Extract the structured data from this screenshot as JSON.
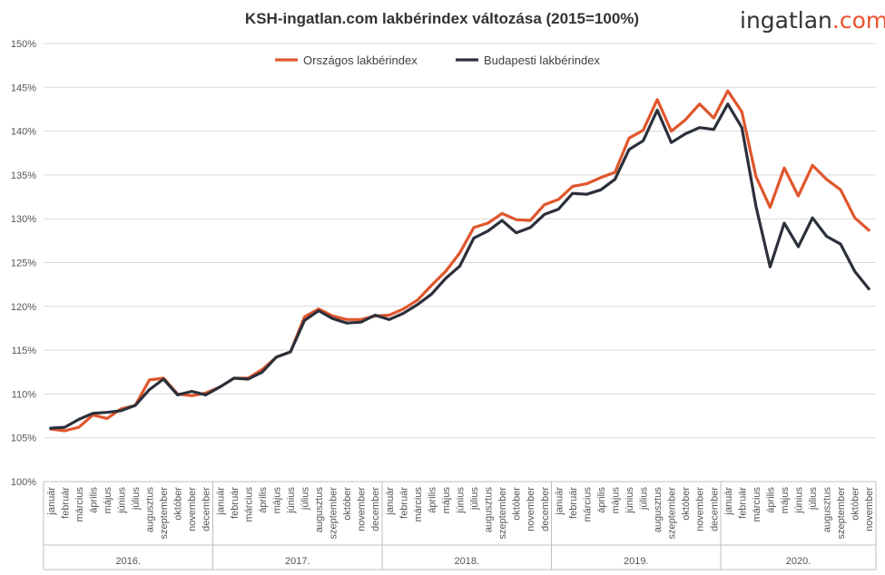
{
  "chart_data": {
    "type": "line",
    "title": "KSH-ingatlan.com lakbérindex változása (2015=100%)",
    "logo": {
      "main": "ingatlan",
      "accent": ".com"
    },
    "ylim": [
      100,
      150
    ],
    "yticks": [
      "100%",
      "105%",
      "110%",
      "115%",
      "120%",
      "125%",
      "130%",
      "135%",
      "140%",
      "145%",
      "150%"
    ],
    "grid": "horizontal",
    "legend_position": "top-center",
    "months": [
      "január",
      "február",
      "március",
      "április",
      "május",
      "június",
      "július",
      "augusztus",
      "szeptember",
      "október",
      "november",
      "december"
    ],
    "years": [
      "2016.",
      "2017.",
      "2018.",
      "2019.",
      "2020."
    ],
    "x_count": 59,
    "series": [
      {
        "name": "Országos lakbérindex",
        "color": "#e0562c",
        "values": [
          106.0,
          105.8,
          106.2,
          107.6,
          107.2,
          108.3,
          108.7,
          111.6,
          111.8,
          110.0,
          109.8,
          110.1,
          110.8,
          111.8,
          111.8,
          112.8,
          114.2,
          114.8,
          118.8,
          119.7,
          118.9,
          118.5,
          118.5,
          118.9,
          119.0,
          119.7,
          120.7,
          122.4,
          124.0,
          126.1,
          129.0,
          129.5,
          130.6,
          129.9,
          129.8,
          131.6,
          132.2,
          133.7,
          134.0,
          134.7,
          135.3,
          139.2,
          140.1,
          143.6,
          140.0,
          141.3,
          143.1,
          141.5,
          144.6,
          142.2,
          134.8,
          131.3,
          135.8,
          132.6,
          136.1,
          134.5,
          133.3,
          130.1,
          128.7
        ]
      },
      {
        "name": "Budapesti lakbérindex",
        "color": "#2b303b",
        "values": [
          106.1,
          106.2,
          107.1,
          107.8,
          107.9,
          108.1,
          108.7,
          110.5,
          111.7,
          109.9,
          110.3,
          109.9,
          110.8,
          111.8,
          111.7,
          112.5,
          114.2,
          114.8,
          118.4,
          119.5,
          118.6,
          118.1,
          118.2,
          119.0,
          118.5,
          119.2,
          120.2,
          121.4,
          123.2,
          124.6,
          127.8,
          128.6,
          129.8,
          128.4,
          129.0,
          130.5,
          131.1,
          132.9,
          132.8,
          133.3,
          134.5,
          137.9,
          138.9,
          142.4,
          138.7,
          139.7,
          140.4,
          140.2,
          143.1,
          140.4,
          131.4,
          124.5,
          129.5,
          126.8,
          130.1,
          128.0,
          127.1,
          124.0,
          122.0
        ]
      }
    ]
  }
}
